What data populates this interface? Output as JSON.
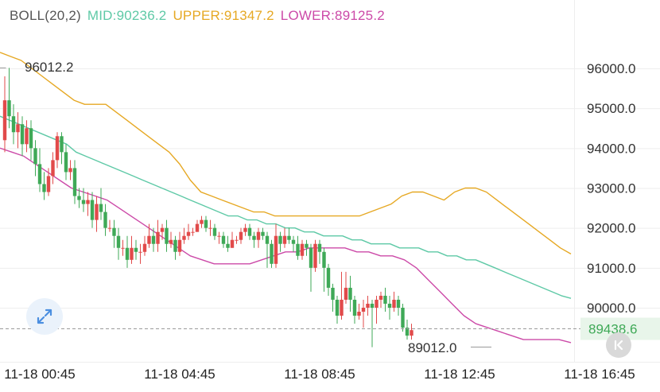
{
  "indicator": {
    "name": "BOLL(20,2)",
    "mid_label": "MID:90236.2",
    "upper_label": "UPPER:91347.2",
    "lower_label": "LOWER:89125.2"
  },
  "colors": {
    "mid": "#5ec9a6",
    "upper": "#e6a823",
    "lower": "#cc4aa8",
    "up": "#e14a4a",
    "down": "#3fa957",
    "grid": "#eeeeee",
    "axis_text": "#333333",
    "time_text": "#222222",
    "price_tag_bg": "#e8f5ea",
    "price_tag_text": "#3fa957",
    "legend_name": "#555555"
  },
  "annotations": {
    "high_label": "96012.2",
    "low_label": "89012.0",
    "current_price": "89438.6"
  },
  "icons": {
    "expand": "expand-arrows-icon",
    "back": "chevron-left-to-bar-icon"
  },
  "chart_data": {
    "type": "candlestick",
    "indicator": "BOLL(20,2)",
    "y_ticks": [
      "96000.0",
      "95000.0",
      "94000.0",
      "93000.0",
      "92000.0",
      "91000.0",
      "90000.0"
    ],
    "ylim": [
      88300,
      96800
    ],
    "x_ticks": [
      "11-18 00:45",
      "11-18 04:45",
      "11-18 08:45",
      "11-18 12:45",
      "11-18 16:45"
    ],
    "x_tick_index": [
      8,
      40,
      72,
      104,
      136
    ],
    "high": 96012.2,
    "low": 89012.0,
    "current_price": 89438.6,
    "candles": [
      [
        94200,
        95200,
        95800,
        93900
      ],
      [
        95200,
        94800,
        96012,
        94500
      ],
      [
        94800,
        94400,
        95100,
        94100
      ],
      [
        94400,
        94600,
        94900,
        94000
      ],
      [
        94600,
        94100,
        94800,
        93800
      ],
      [
        94100,
        94500,
        94700,
        93900
      ],
      [
        94500,
        94000,
        94700,
        93700
      ],
      [
        94000,
        93600,
        94200,
        93300
      ],
      [
        93600,
        93100,
        94000,
        92900
      ],
      [
        93100,
        92900,
        93400,
        92700
      ],
      [
        92900,
        93300,
        93500,
        92800
      ],
      [
        93300,
        93700,
        93900,
        93100
      ],
      [
        93700,
        94300,
        94400,
        93500
      ],
      [
        94300,
        93900,
        94400,
        93600
      ],
      [
        93900,
        93400,
        94100,
        93200
      ],
      [
        93400,
        93500,
        93700,
        93200
      ],
      [
        93500,
        92800,
        93700,
        92600
      ],
      [
        92800,
        92700,
        93000,
        92500
      ],
      [
        92700,
        92600,
        93000,
        92400
      ],
      [
        92600,
        92700,
        92900,
        92300
      ],
      [
        92700,
        92200,
        92900,
        92000
      ],
      [
        92200,
        92600,
        92800,
        91900
      ],
      [
        92600,
        92400,
        93000,
        92200
      ],
      [
        92400,
        92000,
        92600,
        91800
      ],
      [
        92000,
        92000,
        92200,
        91900
      ],
      [
        92000,
        91800,
        92200,
        91500
      ],
      [
        91800,
        91500,
        92000,
        91200
      ],
      [
        91500,
        91500,
        91700,
        91300
      ],
      [
        91500,
        91200,
        91800,
        91000
      ],
      [
        91200,
        91500,
        91800,
        91100
      ],
      [
        91500,
        91400,
        91700,
        91200
      ],
      [
        91400,
        91400,
        91600,
        91100
      ],
      [
        91400,
        91600,
        91800,
        91300
      ],
      [
        91600,
        91800,
        92100,
        91500
      ],
      [
        91800,
        91600,
        92000,
        91400
      ],
      [
        91600,
        91900,
        92200,
        91400
      ],
      [
        91900,
        92000,
        92100,
        91700
      ],
      [
        92000,
        91600,
        92200,
        91400
      ],
      [
        91600,
        91700,
        91900,
        91500
      ],
      [
        91700,
        91400,
        91800,
        91200
      ],
      [
        91400,
        91700,
        91900,
        91300
      ],
      [
        91700,
        91800,
        92000,
        91600
      ],
      [
        91800,
        91900,
        92100,
        91700
      ],
      [
        91900,
        91900,
        92000,
        91800
      ],
      [
        91900,
        92100,
        92200,
        91900
      ],
      [
        92100,
        92200,
        92300,
        92000
      ],
      [
        92200,
        92000,
        92300,
        91900
      ],
      [
        92000,
        92000,
        92200,
        91800
      ],
      [
        92000,
        91800,
        92100,
        91700
      ],
      [
        91800,
        91800,
        91900,
        91600
      ],
      [
        91800,
        91600,
        91900,
        91500
      ],
      [
        91600,
        91500,
        91800,
        91400
      ],
      [
        91500,
        91700,
        91900,
        91500
      ],
      [
        91700,
        91700,
        91800,
        91600
      ],
      [
        91700,
        91900,
        92000,
        91600
      ],
      [
        91900,
        92000,
        92100,
        91800
      ],
      [
        92000,
        91800,
        92100,
        91700
      ],
      [
        91800,
        91700,
        91900,
        91500
      ],
      [
        91700,
        91900,
        92000,
        91500
      ],
      [
        91900,
        91800,
        92000,
        91700
      ],
      [
        91800,
        91600,
        91900,
        91000
      ],
      [
        91600,
        91100,
        91700,
        91000
      ],
      [
        91100,
        91800,
        92100,
        91000
      ],
      [
        91800,
        91600,
        91900,
        91400
      ],
      [
        91600,
        91800,
        92000,
        91500
      ],
      [
        91800,
        91700,
        92000,
        91600
      ],
      [
        91700,
        91600,
        91800,
        91400
      ],
      [
        91600,
        91300,
        91800,
        91200
      ],
      [
        91300,
        91600,
        91700,
        91200
      ],
      [
        91600,
        91500,
        91700,
        91300
      ],
      [
        91500,
        91000,
        91600,
        90400
      ],
      [
        91000,
        91600,
        91700,
        90900
      ],
      [
        91600,
        91400,
        91700,
        91100
      ],
      [
        91400,
        91000,
        91500,
        90400
      ],
      [
        91000,
        90500,
        91100,
        90300
      ],
      [
        90500,
        90200,
        90600,
        89900
      ],
      [
        90200,
        89800,
        90300,
        89600
      ],
      [
        89800,
        90200,
        90900,
        89700
      ],
      [
        90200,
        90500,
        90900,
        90100
      ],
      [
        90500,
        90200,
        90800,
        89900
      ],
      [
        90200,
        89800,
        90300,
        89600
      ],
      [
        89800,
        89900,
        90100,
        89700
      ],
      [
        89900,
        90000,
        90200,
        89500
      ],
      [
        90000,
        90100,
        90300,
        89800
      ],
      [
        90100,
        90000,
        90200,
        89012
      ],
      [
        90000,
        90200,
        90300,
        89600
      ],
      [
        90200,
        90300,
        90400,
        90000
      ],
      [
        90300,
        90100,
        90500,
        89900
      ],
      [
        90100,
        90000,
        90300,
        89700
      ],
      [
        90000,
        90200,
        90400,
        89900
      ],
      [
        90200,
        90000,
        90300,
        89800
      ],
      [
        90000,
        89500,
        90100,
        89400
      ],
      [
        89500,
        89300,
        89700,
        89200
      ],
      [
        89300,
        89438,
        89600,
        89200
      ]
    ],
    "series": [
      {
        "name": "MID",
        "values": [
          94800,
          94700,
          94600,
          94500,
          94400,
          94300,
          94200,
          94100,
          93900,
          93800,
          93700,
          93600,
          93500,
          93400,
          93300,
          93200,
          93100,
          93000,
          92900,
          92800,
          92700,
          92600,
          92500,
          92400,
          92300,
          92300,
          92200,
          92200,
          92100,
          92100,
          92000,
          92000,
          91900,
          91900,
          91800,
          91800,
          91800,
          91700,
          91700,
          91600,
          91600,
          91600,
          91500,
          91500,
          91500,
          91400,
          91400,
          91300,
          91300,
          91200,
          91200,
          91100,
          91000,
          90900,
          90800,
          90700,
          90600,
          90500,
          90400,
          90300,
          90236
        ]
      },
      {
        "name": "UPPER",
        "values": [
          96400,
          96300,
          96200,
          96000,
          95800,
          95600,
          95400,
          95200,
          95100,
          95100,
          95100,
          94900,
          94700,
          94500,
          94300,
          94100,
          93900,
          93600,
          93200,
          92900,
          92800,
          92700,
          92600,
          92500,
          92400,
          92400,
          92300,
          92300,
          92300,
          92300,
          92300,
          92300,
          92300,
          92300,
          92300,
          92400,
          92500,
          92600,
          92800,
          92900,
          92900,
          92800,
          92700,
          92900,
          93000,
          93000,
          92900,
          92700,
          92500,
          92300,
          92100,
          91900,
          91700,
          91500,
          91347
        ]
      },
      {
        "name": "LOWER",
        "values": [
          94000,
          93900,
          93800,
          93600,
          93400,
          93200,
          93000,
          92900,
          92800,
          92700,
          92500,
          92300,
          92100,
          91900,
          91700,
          91500,
          91300,
          91200,
          91100,
          91100,
          91100,
          91100,
          91200,
          91300,
          91400,
          91400,
          91500,
          91500,
          91500,
          91500,
          91400,
          91400,
          91300,
          91300,
          91200,
          91000,
          90700,
          90400,
          90100,
          89800,
          89600,
          89500,
          89400,
          89300,
          89200,
          89200,
          89200,
          89200,
          89125
        ]
      }
    ]
  }
}
